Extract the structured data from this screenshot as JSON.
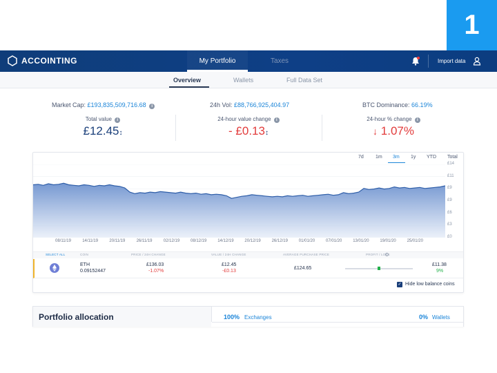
{
  "slide_number": "1",
  "app": {
    "brand": "ACCOINTING"
  },
  "nav": {
    "tabs": [
      {
        "label": "My Portfolio",
        "active": true
      },
      {
        "label": "Taxes",
        "active": false
      }
    ],
    "import_label": "Import data"
  },
  "subnav": {
    "tabs": [
      {
        "label": "Overview",
        "active": true
      },
      {
        "label": "Wallets"
      },
      {
        "label": "Full Data Set"
      }
    ]
  },
  "market": {
    "market_cap_label": "Market Cap:",
    "market_cap_value": "£193,835,509,716.68",
    "vol_label": "24h Vol:",
    "vol_value": "£88,766,925,404.97",
    "btc_label": "BTC Dominance:",
    "btc_value": "66.19%"
  },
  "summary": {
    "total_label": "Total value",
    "total_value": "£12.45",
    "change_label": "24-hour value change",
    "change_value": "- £0.13",
    "pct_label": "24-hour % change",
    "pct_value": "1.07%"
  },
  "chart": {
    "ranges": [
      "7d",
      "1m",
      "3m",
      "1y",
      "YTD",
      "Total"
    ],
    "active_range": "3m",
    "y_ticks": [
      "£14",
      "£11",
      "£9",
      "£9",
      "£6",
      "£3",
      "£0"
    ],
    "x_ticks": [
      "08/11/19",
      "14/11/19",
      "20/11/19",
      "26/11/19",
      "02/12/19",
      "08/12/19",
      "14/12/19",
      "20/12/19",
      "26/12/19",
      "01/01/20",
      "07/01/20",
      "13/01/20",
      "19/01/20",
      "25/01/20"
    ],
    "colors": {
      "fill_top": "#7a9fd6",
      "fill_bottom": "#e8eef8",
      "line": "#2f5ea8"
    }
  },
  "chart_data": {
    "type": "area",
    "xlabel": "",
    "ylabel": "",
    "ylim": [
      0,
      14
    ],
    "series": [
      {
        "values": [
          10.1,
          10.2,
          10.0,
          10.3,
          10.1,
          10.2,
          10.4,
          10.1,
          10.0,
          9.9,
          10.1,
          10.0,
          9.8,
          10.0,
          9.9,
          10.1,
          9.9,
          9.8,
          9.5,
          8.7,
          8.4,
          8.6,
          8.5,
          8.7,
          8.6,
          8.8,
          8.7,
          8.6,
          8.5,
          8.7,
          8.5,
          8.4,
          8.5,
          8.3,
          8.4,
          8.2,
          8.3,
          8.2,
          8.0,
          7.5,
          7.7,
          7.9,
          8.0,
          8.2,
          8.1,
          8.0,
          7.9,
          7.8,
          7.9,
          7.8,
          8.0,
          7.9,
          8.0,
          8.1,
          7.9,
          8.0,
          8.1,
          8.2,
          8.3,
          8.1,
          8.2,
          8.6,
          8.4,
          8.5,
          8.7,
          9.4,
          9.2,
          9.3,
          9.5,
          9.3,
          9.4,
          9.7,
          9.5,
          9.6,
          9.4,
          9.5,
          9.6,
          9.4,
          9.5,
          9.6,
          9.7,
          9.9
        ]
      }
    ]
  },
  "table": {
    "headers": {
      "select": "SELECT ALL",
      "coin": "COIN",
      "price": "PRICE / 24H CHANGE",
      "value": "VALUE / 24H CHANGE",
      "avg": "AVERAGE PURCHASE PRICE",
      "pl": "PROFIT / LOSS"
    },
    "row": {
      "coin": "ETH",
      "amount": "0.09152447",
      "price": "£136.03",
      "price_change": "-1.07%",
      "value": "£12.45",
      "value_change": "-£0.13",
      "avg_price": "£124.65",
      "pl_value": "£11.38",
      "pl_pct": "9%",
      "pl_fraction": 0.5
    },
    "hide_label": "Hide low balance coins",
    "hide_checked": true
  },
  "allocation": {
    "title": "Portfolio allocation",
    "exchanges_pct": "100%",
    "exchanges_label": "Exchanges",
    "wallets_pct": "0%",
    "wallets_label": "Wallets"
  }
}
